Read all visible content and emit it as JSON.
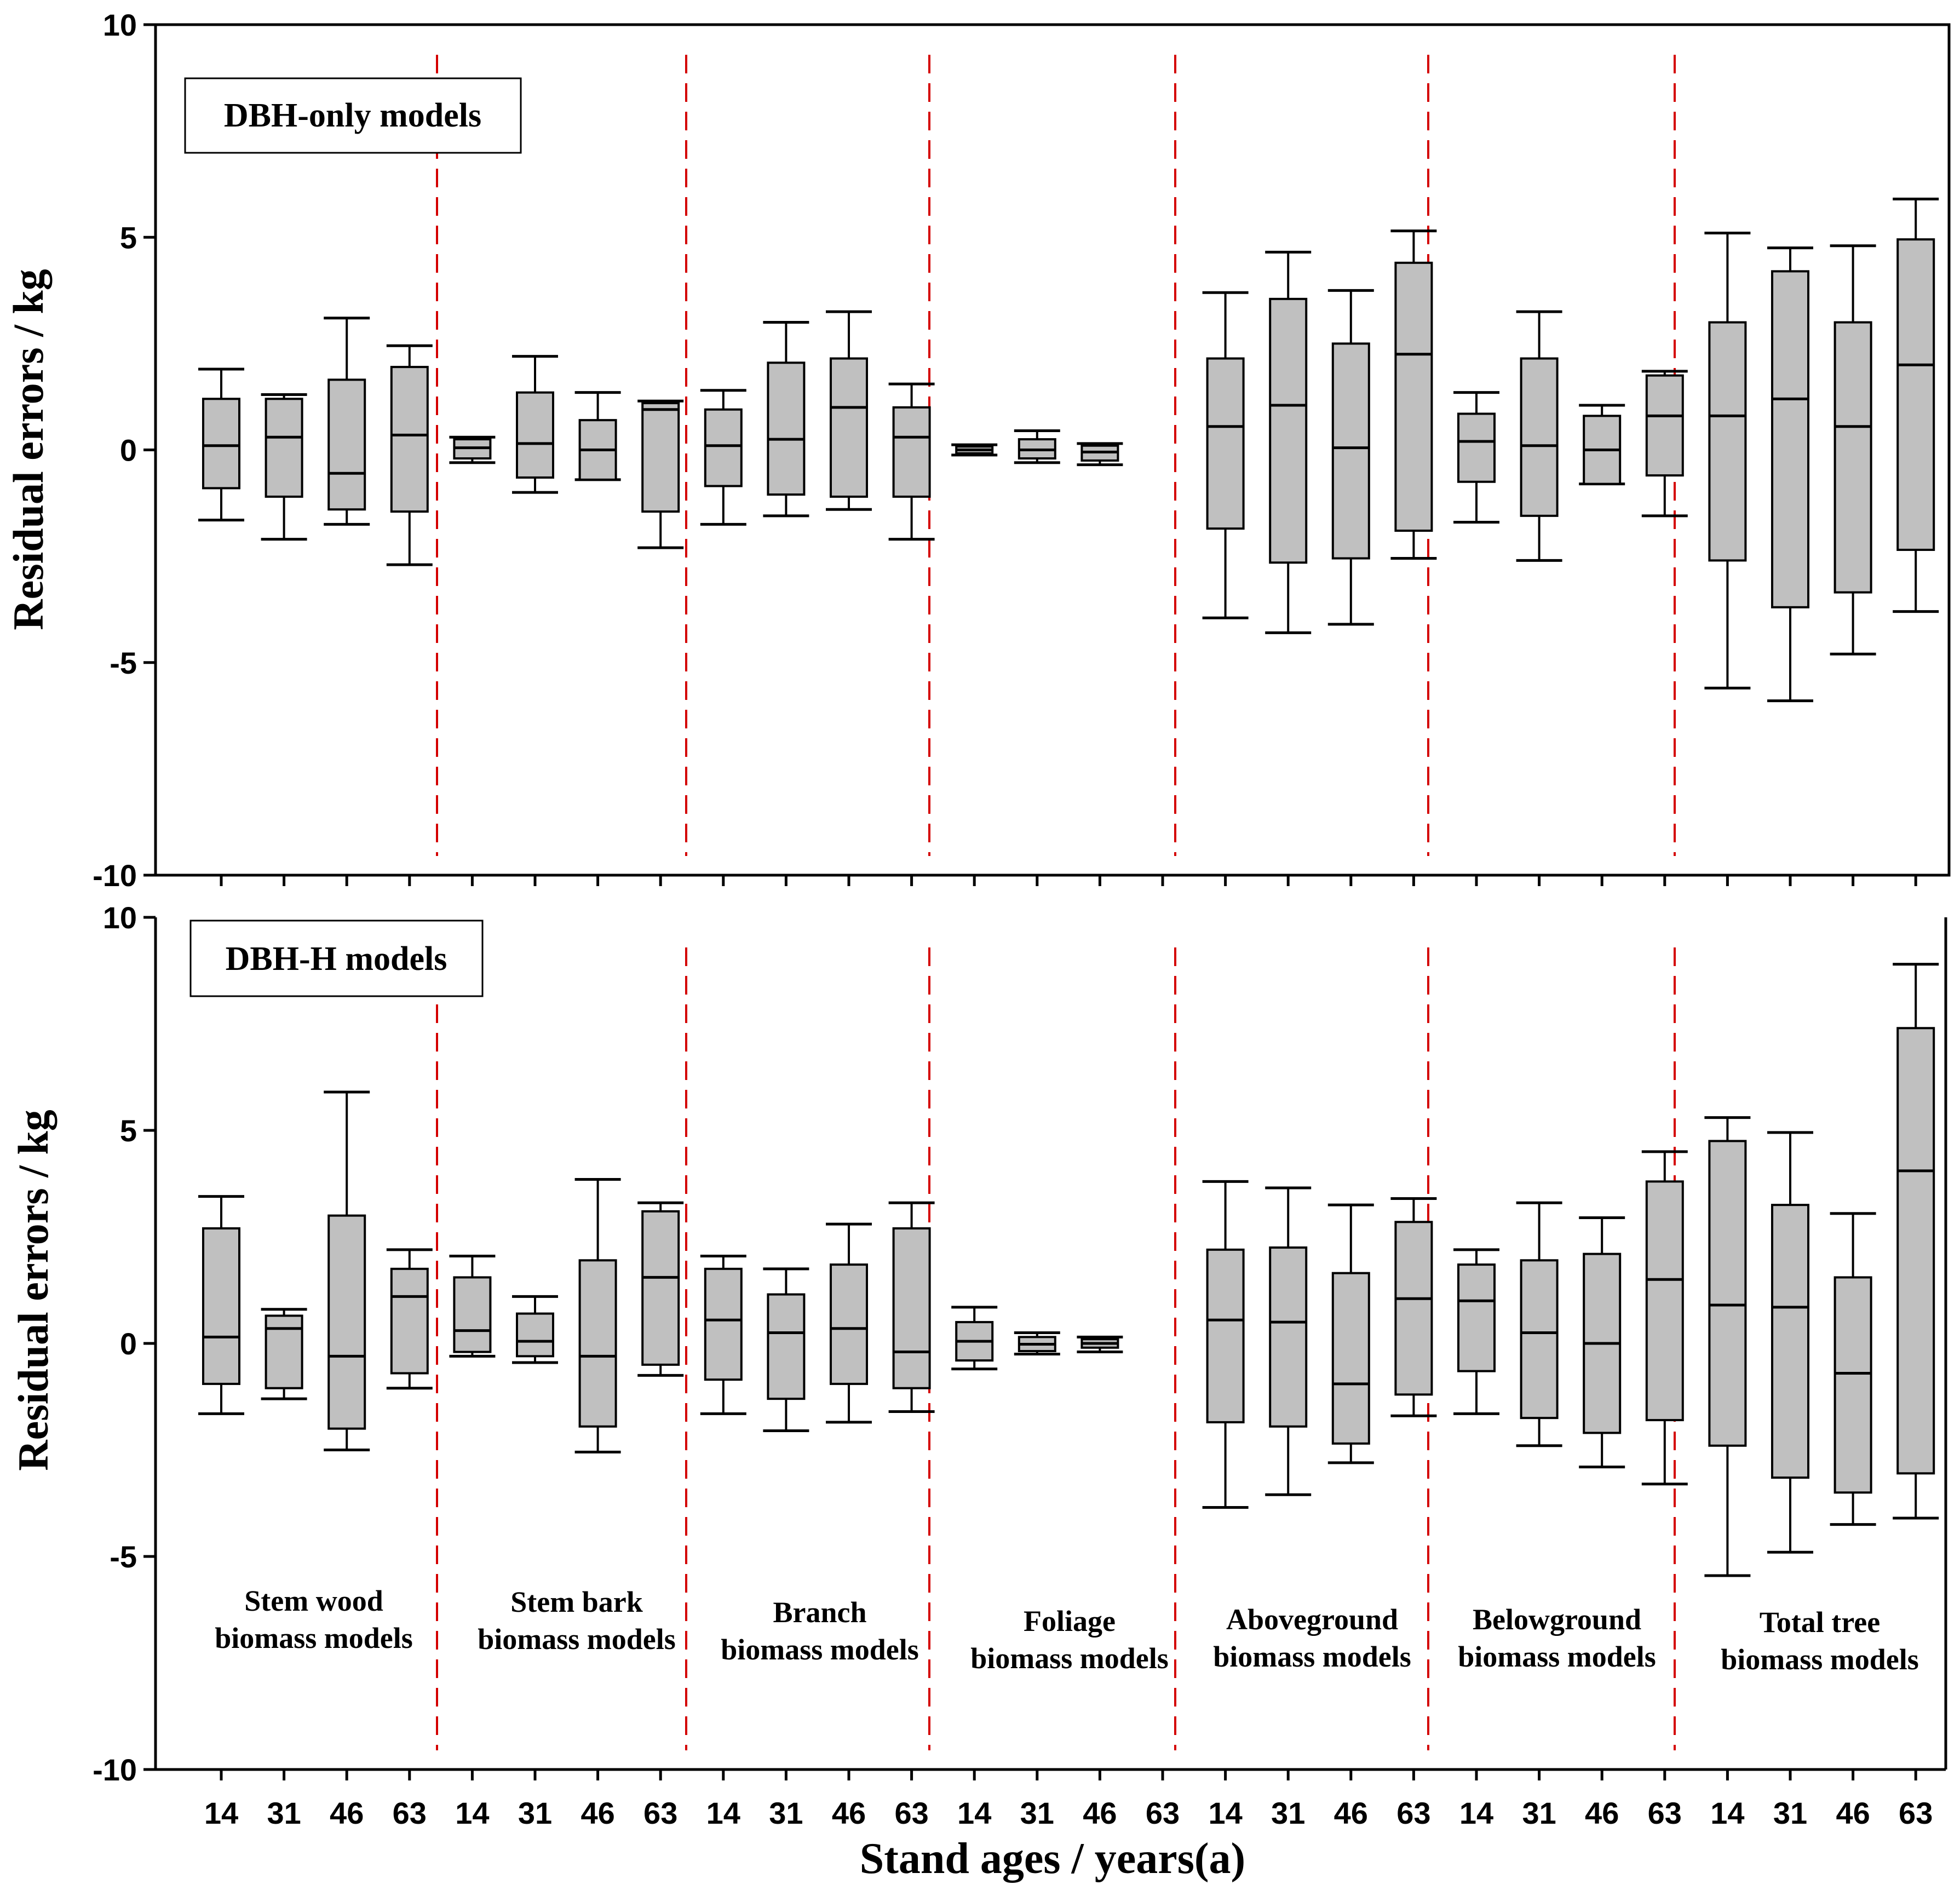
{
  "colors": {
    "box_fill": "#c0c0c0",
    "box_stroke": "#000000",
    "divider": "#d40000",
    "axis": "#000000"
  },
  "chart_data": [
    {
      "type": "boxplot",
      "title": "DBH-only models",
      "ylabel": "Residual errors / kg",
      "ylim": [
        -10,
        10
      ],
      "yticks": [
        "-10",
        "-5",
        "0",
        "5",
        "10"
      ],
      "groups": [
        "Stem wood biomass models",
        "Stem bark biomass models",
        "Branch biomass models",
        "Foliage biomass models",
        "Aboveground biomass models",
        "Belowground biomass models",
        "Total tree biomass models"
      ],
      "boxes": [
        {
          "group": 0,
          "age": "14",
          "min": -1.65,
          "q1": -0.9,
          "median": 0.1,
          "q3": 1.2,
          "max": 1.9
        },
        {
          "group": 0,
          "age": "31",
          "min": -2.1,
          "q1": -1.1,
          "median": 0.3,
          "q3": 1.2,
          "max": 1.3
        },
        {
          "group": 0,
          "age": "46",
          "min": -1.75,
          "q1": -1.4,
          "median": -0.55,
          "q3": 1.65,
          "max": 3.1
        },
        {
          "group": 0,
          "age": "63",
          "min": -2.7,
          "q1": -1.45,
          "median": 0.35,
          "q3": 1.95,
          "max": 2.45
        },
        {
          "group": 1,
          "age": "14",
          "min": -0.3,
          "q1": -0.2,
          "median": 0.05,
          "q3": 0.25,
          "max": 0.3
        },
        {
          "group": 1,
          "age": "31",
          "min": -1.0,
          "q1": -0.65,
          "median": 0.15,
          "q3": 1.35,
          "max": 2.2
        },
        {
          "group": 1,
          "age": "46",
          "min": -0.7,
          "q1": -0.7,
          "median": 0.0,
          "q3": 0.7,
          "max": 1.35
        },
        {
          "group": 1,
          "age": "63",
          "min": -2.3,
          "q1": -1.45,
          "median": 0.95,
          "q3": 1.1,
          "max": 1.15
        },
        {
          "group": 2,
          "age": "14",
          "min": -1.75,
          "q1": -0.85,
          "median": 0.1,
          "q3": 0.95,
          "max": 1.4
        },
        {
          "group": 2,
          "age": "31",
          "min": -1.55,
          "q1": -1.05,
          "median": 0.25,
          "q3": 2.05,
          "max": 3.0
        },
        {
          "group": 2,
          "age": "46",
          "min": -1.4,
          "q1": -1.1,
          "median": 1.0,
          "q3": 2.15,
          "max": 3.25
        },
        {
          "group": 2,
          "age": "63",
          "min": -2.1,
          "q1": -1.1,
          "median": 0.3,
          "q3": 1.0,
          "max": 1.55
        },
        {
          "group": 3,
          "age": "14",
          "min": -0.12,
          "q1": -0.08,
          "median": 0.0,
          "q3": 0.08,
          "max": 0.12
        },
        {
          "group": 3,
          "age": "31",
          "min": -0.3,
          "q1": -0.2,
          "median": 0.0,
          "q3": 0.25,
          "max": 0.45
        },
        {
          "group": 3,
          "age": "46",
          "min": -0.35,
          "q1": -0.25,
          "median": -0.05,
          "q3": 0.1,
          "max": 0.15
        },
        {
          "group": 4,
          "age": "14",
          "min": -3.95,
          "q1": -1.85,
          "median": 0.55,
          "q3": 2.15,
          "max": 3.7
        },
        {
          "group": 4,
          "age": "31",
          "min": -4.3,
          "q1": -2.65,
          "median": 1.05,
          "q3": 3.55,
          "max": 4.65
        },
        {
          "group": 4,
          "age": "46",
          "min": -4.1,
          "q1": -2.55,
          "median": 0.05,
          "q3": 2.5,
          "max": 3.75
        },
        {
          "group": 4,
          "age": "63",
          "min": -2.55,
          "q1": -1.9,
          "median": 2.25,
          "q3": 4.4,
          "max": 5.15
        },
        {
          "group": 5,
          "age": "14",
          "min": -1.7,
          "q1": -0.75,
          "median": 0.2,
          "q3": 0.85,
          "max": 1.35
        },
        {
          "group": 5,
          "age": "31",
          "min": -2.6,
          "q1": -1.55,
          "median": 0.1,
          "q3": 2.15,
          "max": 3.25
        },
        {
          "group": 5,
          "age": "46",
          "min": -0.8,
          "q1": -0.8,
          "median": 0.0,
          "q3": 0.8,
          "max": 1.05
        },
        {
          "group": 5,
          "age": "63",
          "min": -1.55,
          "q1": -0.6,
          "median": 0.8,
          "q3": 1.75,
          "max": 1.85
        },
        {
          "group": 6,
          "age": "14",
          "min": -5.6,
          "q1": -2.6,
          "median": 0.8,
          "q3": 3.0,
          "max": 5.1
        },
        {
          "group": 6,
          "age": "31",
          "min": -5.9,
          "q1": -3.7,
          "median": 1.2,
          "q3": 4.2,
          "max": 4.75
        },
        {
          "group": 6,
          "age": "46",
          "min": -4.8,
          "q1": -3.35,
          "median": 0.55,
          "q3": 3.0,
          "max": 4.8
        },
        {
          "group": 6,
          "age": "63",
          "min": -3.8,
          "q1": -2.35,
          "median": 2.0,
          "q3": 4.95,
          "max": 5.9
        }
      ]
    },
    {
      "type": "boxplot",
      "title": "DBH-H models",
      "ylabel": "Residual errors / kg",
      "xlabel": "Stand ages / years(a)",
      "ylim": [
        -10,
        10
      ],
      "yticks": [
        "-10",
        "-5",
        "0",
        "5",
        "10"
      ],
      "xticks": [
        "14",
        "31",
        "46",
        "63",
        "14",
        "31",
        "46",
        "63",
        "14",
        "31",
        "46",
        "63",
        "14",
        "31",
        "46",
        "63",
        "14",
        "31",
        "46",
        "63",
        "14",
        "31",
        "46",
        "63",
        "14",
        "31",
        "46",
        "63"
      ],
      "group_labels": [
        {
          "line1": "Stem wood",
          "line2": "biomass models"
        },
        {
          "line1": "Stem bark",
          "line2": "biomass models"
        },
        {
          "line1": "Branch",
          "line2": "biomass models"
        },
        {
          "line1": "Foliage",
          "line2": "biomass models"
        },
        {
          "line1": "Aboveground",
          "line2": "biomass models"
        },
        {
          "line1": "Belowground",
          "line2": "biomass models"
        },
        {
          "line1": "Total tree",
          "line2": "biomass models"
        }
      ],
      "boxes": [
        {
          "group": 0,
          "age": "14",
          "min": -1.65,
          "q1": -0.95,
          "median": 0.15,
          "q3": 2.7,
          "max": 3.45
        },
        {
          "group": 0,
          "age": "31",
          "min": -1.3,
          "q1": -1.05,
          "median": 0.35,
          "q3": 0.65,
          "max": 0.8
        },
        {
          "group": 0,
          "age": "46",
          "min": -2.5,
          "q1": -2.0,
          "median": -0.3,
          "q3": 3.0,
          "max": 5.9
        },
        {
          "group": 0,
          "age": "63",
          "min": -1.05,
          "q1": -0.7,
          "median": 1.1,
          "q3": 1.75,
          "max": 2.2
        },
        {
          "group": 1,
          "age": "14",
          "min": -0.3,
          "q1": -0.2,
          "median": 0.3,
          "q3": 1.55,
          "max": 2.05
        },
        {
          "group": 1,
          "age": "31",
          "min": -0.45,
          "q1": -0.3,
          "median": 0.05,
          "q3": 0.7,
          "max": 1.1
        },
        {
          "group": 1,
          "age": "46",
          "min": -2.55,
          "q1": -1.95,
          "median": -0.3,
          "q3": 1.95,
          "max": 3.85
        },
        {
          "group": 1,
          "age": "63",
          "min": -0.75,
          "q1": -0.5,
          "median": 1.55,
          "q3": 3.1,
          "max": 3.3
        },
        {
          "group": 2,
          "age": "14",
          "min": -1.65,
          "q1": -0.85,
          "median": 0.55,
          "q3": 1.75,
          "max": 2.05
        },
        {
          "group": 2,
          "age": "31",
          "min": -2.05,
          "q1": -1.3,
          "median": 0.25,
          "q3": 1.15,
          "max": 1.75
        },
        {
          "group": 2,
          "age": "46",
          "min": -1.85,
          "q1": -0.95,
          "median": 0.35,
          "q3": 1.85,
          "max": 2.8
        },
        {
          "group": 2,
          "age": "63",
          "min": -1.6,
          "q1": -1.05,
          "median": -0.2,
          "q3": 2.7,
          "max": 3.3
        },
        {
          "group": 3,
          "age": "14",
          "min": -0.6,
          "q1": -0.4,
          "median": 0.05,
          "q3": 0.5,
          "max": 0.85
        },
        {
          "group": 3,
          "age": "31",
          "min": -0.25,
          "q1": -0.18,
          "median": -0.02,
          "q3": 0.15,
          "max": 0.25
        },
        {
          "group": 3,
          "age": "46",
          "min": -0.2,
          "q1": -0.1,
          "median": 0.0,
          "q3": 0.1,
          "max": 0.15
        },
        {
          "group": 4,
          "age": "14",
          "min": -3.85,
          "q1": -1.85,
          "median": 0.55,
          "q3": 2.2,
          "max": 3.8
        },
        {
          "group": 4,
          "age": "31",
          "min": -3.55,
          "q1": -1.95,
          "median": 0.5,
          "q3": 2.25,
          "max": 3.65
        },
        {
          "group": 4,
          "age": "46",
          "min": -2.8,
          "q1": -2.35,
          "median": -0.95,
          "q3": 1.65,
          "max": 3.25
        },
        {
          "group": 4,
          "age": "63",
          "min": -1.7,
          "q1": -1.2,
          "median": 1.05,
          "q3": 2.85,
          "max": 3.4
        },
        {
          "group": 5,
          "age": "14",
          "min": -1.65,
          "q1": -0.65,
          "median": 1.0,
          "q3": 1.85,
          "max": 2.2
        },
        {
          "group": 5,
          "age": "31",
          "min": -2.4,
          "q1": -1.75,
          "median": 0.25,
          "q3": 1.95,
          "max": 3.3
        },
        {
          "group": 5,
          "age": "46",
          "min": -2.9,
          "q1": -2.1,
          "median": 0.0,
          "q3": 2.1,
          "max": 2.95
        },
        {
          "group": 5,
          "age": "63",
          "min": -3.3,
          "q1": -1.8,
          "median": 1.5,
          "q3": 3.8,
          "max": 4.5
        },
        {
          "group": 6,
          "age": "14",
          "min": -5.45,
          "q1": -2.4,
          "median": 0.9,
          "q3": 4.75,
          "max": 5.3
        },
        {
          "group": 6,
          "age": "31",
          "min": -4.9,
          "q1": -3.15,
          "median": 0.85,
          "q3": 3.25,
          "max": 4.95
        },
        {
          "group": 6,
          "age": "46",
          "min": -4.25,
          "q1": -3.5,
          "median": -0.7,
          "q3": 1.55,
          "max": 3.05
        },
        {
          "group": 6,
          "age": "63",
          "min": -4.1,
          "q1": -3.05,
          "median": 4.05,
          "q3": 7.4,
          "max": 8.9
        }
      ]
    }
  ]
}
